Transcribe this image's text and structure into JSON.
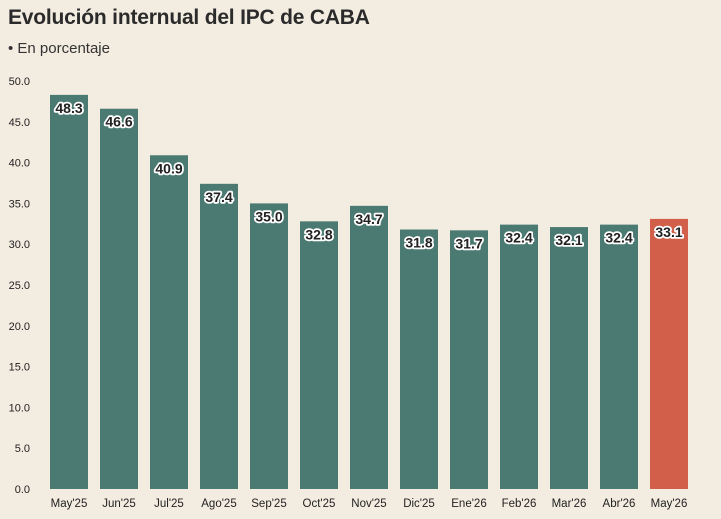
{
  "chart_data": {
    "type": "bar",
    "title": "Evolución internual del IPC de CABA",
    "subtitle": "• En porcentaje",
    "categories": [
      "May'25",
      "Jun'25",
      "Jul'25",
      "Ago'25",
      "Sep'25",
      "Oct'25",
      "Nov'25",
      "Dic'25",
      "Ene'26",
      "Feb'26",
      "Mar'26",
      "Abr'26",
      "May'26"
    ],
    "values": [
      48.3,
      46.6,
      40.9,
      37.4,
      35.0,
      32.8,
      34.7,
      31.8,
      31.7,
      32.4,
      32.1,
      32.4,
      33.1
    ],
    "value_labels": [
      "48.3",
      "46.6",
      "40.9",
      "37.4",
      "35.0",
      "32.8",
      "34.7",
      "31.8",
      "31.7",
      "32.4",
      "32.1",
      "32.4",
      "33.1"
    ],
    "yticks": [
      "0.0",
      "5.0",
      "10.0",
      "15.0",
      "20.0",
      "25.0",
      "30.0",
      "35.0",
      "40.0",
      "45.0",
      "50.0"
    ],
    "ylim": [
      0,
      50
    ],
    "grid": false,
    "colors": {
      "bar": "#4a7a72",
      "highlight": "#d15f4a",
      "highlight_index": 12,
      "background": "#f3ece1"
    }
  }
}
